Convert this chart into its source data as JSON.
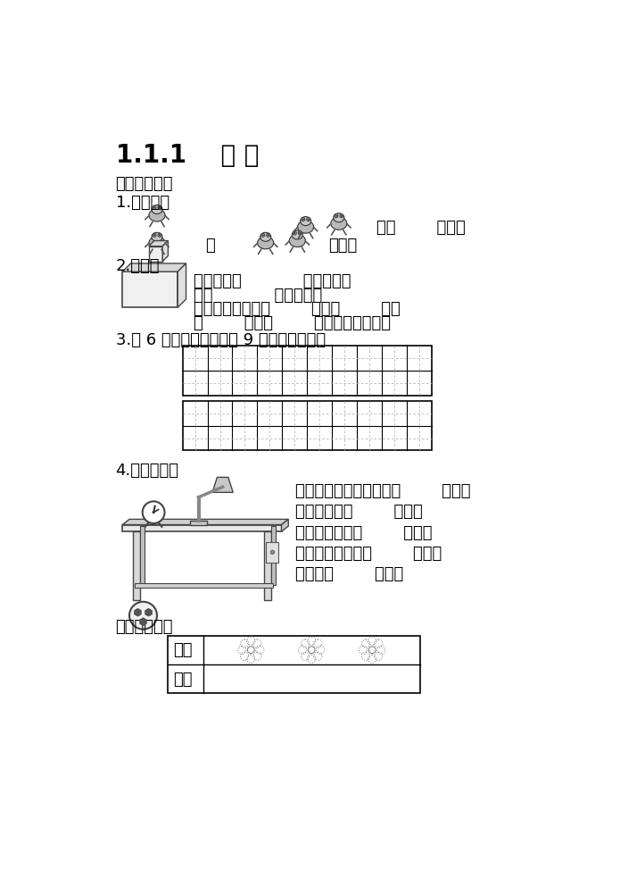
{
  "title": "1.1.1    上 下",
  "section1_label": "【课堂达标】",
  "q1_label": "1.填一填。",
  "q1_de_mian": "的（        ）面。",
  "q1_zai": "在",
  "q1_zai_mian": "）面。",
  "q2_label": "2.填空。",
  "q2_line1": "正方体在（            ）的上面，",
  "q2_line2": "在（            ）的下面。",
  "q2_line3": "长方体的上面有（        ）、（        ）。",
  "q2_line4": "（        ）、（        ）都在圆柱下面。",
  "q3_label": "3.把 6 写在上面一行，把 9 写在下面一行。",
  "q4_label": "4.看图填空。",
  "q4_line1": "闹钟和台灯都在桌子的（        ）面；",
  "q4_line2": "球在桌子的（        ）面；",
  "q4_line3": "桌子在球的的（        ）面。",
  "q4_line4": "闹钟和台灯在最（        ）面；",
  "q4_line5": "球在最（        ）面。",
  "section2_label": "【学习评价】",
  "eval_row1": "自评",
  "eval_row2": "师评",
  "bg_color": "#ffffff",
  "text_color": "#000000"
}
